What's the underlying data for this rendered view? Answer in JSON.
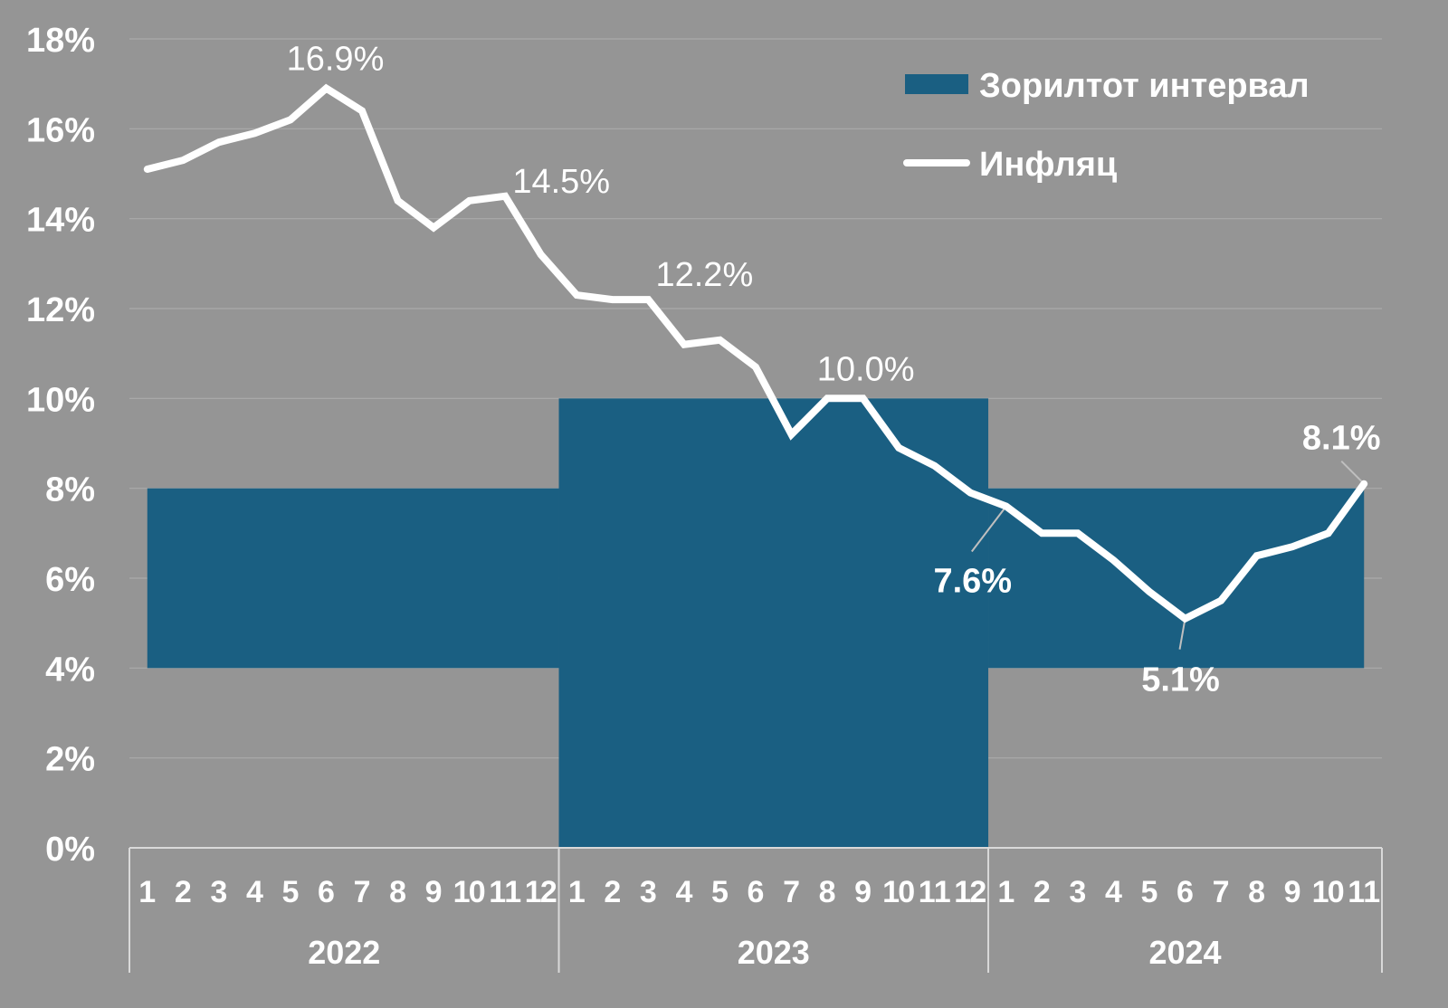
{
  "chart_data": {
    "type": "line",
    "title": "",
    "xlabel": "",
    "ylabel": "",
    "ylim": [
      0,
      18
    ],
    "yticks": [
      "0%",
      "2%",
      "4%",
      "6%",
      "8%",
      "10%",
      "12%",
      "14%",
      "16%",
      "18%"
    ],
    "grid": true,
    "legend_position": "top-right",
    "colors": {
      "background": "#959595",
      "band": "#1a5f82",
      "line": "#ffffff",
      "grid": "#ababab"
    },
    "years": [
      {
        "label": "2022",
        "months": [
          "1",
          "2",
          "3",
          "4",
          "5",
          "6",
          "7",
          "8",
          "9",
          "10",
          "11",
          "12"
        ]
      },
      {
        "label": "2023",
        "months": [
          "1",
          "2",
          "3",
          "4",
          "5",
          "6",
          "7",
          "8",
          "9",
          "10",
          "11",
          "12"
        ]
      },
      {
        "label": "2024",
        "months": [
          "1",
          "2",
          "3",
          "4",
          "5",
          "6",
          "7",
          "8",
          "9",
          "10",
          "11"
        ]
      }
    ],
    "series": [
      {
        "name": "Инфляц",
        "type": "line",
        "values": [
          15.1,
          15.3,
          15.7,
          15.9,
          16.2,
          16.9,
          16.4,
          14.4,
          13.8,
          14.4,
          14.5,
          13.2,
          12.3,
          12.2,
          12.2,
          11.2,
          11.3,
          10.7,
          9.2,
          10.0,
          10.0,
          8.9,
          8.5,
          7.9,
          7.6,
          7.0,
          7.0,
          6.4,
          5.7,
          5.1,
          5.5,
          6.5,
          6.7,
          7.0,
          8.1
        ]
      },
      {
        "name": "Зорилтот интервал",
        "type": "band",
        "ranges": [
          {
            "year": "2022",
            "low": 4,
            "high": 8
          },
          {
            "year": "2023",
            "low": 0,
            "high": 10
          },
          {
            "year": "2024",
            "low": 4,
            "high": 8
          }
        ]
      }
    ],
    "annotations": [
      {
        "text": "16.9%",
        "index": 5,
        "bold": false
      },
      {
        "text": "14.5%",
        "index": 10,
        "bold": false
      },
      {
        "text": "12.2%",
        "index": 14,
        "bold": false
      },
      {
        "text": "10.0%",
        "index": 20,
        "bold": false
      },
      {
        "text": "7.6%",
        "index": 24,
        "bold": true
      },
      {
        "text": "5.1%",
        "index": 29,
        "bold": true
      },
      {
        "text": "8.1%",
        "index": 34,
        "bold": true
      }
    ]
  },
  "legend": {
    "band_label": "Зорилтот интервал",
    "line_label": "Инфляц"
  }
}
